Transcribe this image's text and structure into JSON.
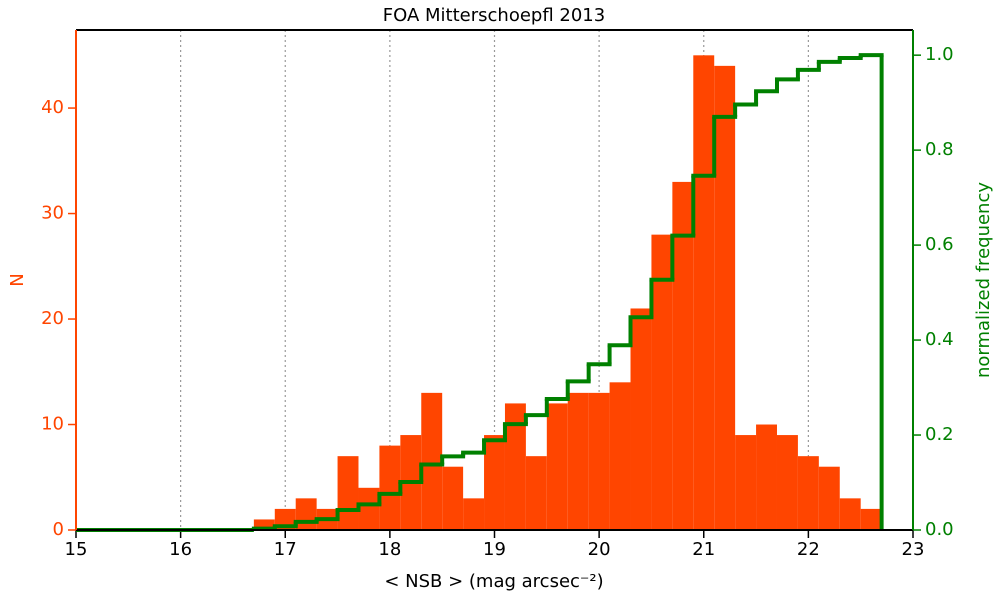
{
  "chart_data": {
    "type": "histogram",
    "title": "FOA Mitterschoepfl 2013",
    "x_label": "< NSB >  (mag arcsec⁻²)",
    "y_label": "N",
    "y2_label": "normalized frequency",
    "bins": [
      16.7,
      16.9,
      17.1,
      17.3,
      17.5,
      17.7,
      17.9,
      18.1,
      18.3,
      18.5,
      18.7,
      18.9,
      19.1,
      19.3,
      19.5,
      19.7,
      19.9,
      20.1,
      20.3,
      20.5,
      20.7,
      20.9,
      21.1,
      21.3,
      21.5,
      21.7,
      21.9,
      22.1,
      22.3,
      22.5,
      22.7
    ],
    "series": [
      {
        "color": "#ff4500",
        "values": [
          1,
          2,
          3,
          2,
          7,
          4,
          8,
          9,
          13,
          6,
          3,
          9,
          12,
          7,
          12,
          13,
          13,
          14,
          21,
          28,
          33,
          45,
          44,
          9,
          10,
          9,
          7,
          6,
          3,
          2
        ]
      },
      {
        "color": "#008000",
        "axis": "y2",
        "values": [
          0.003,
          0.008,
          0.017,
          0.023,
          0.042,
          0.054,
          0.076,
          0.101,
          0.138,
          0.155,
          0.163,
          0.189,
          0.223,
          0.242,
          0.276,
          0.313,
          0.349,
          0.389,
          0.448,
          0.527,
          0.62,
          0.746,
          0.87,
          0.896,
          0.924,
          0.949,
          0.969,
          0.986,
          0.994,
          1
        ]
      }
    ],
    "xlim": [
      15,
      23
    ],
    "xticks": [
      15,
      16,
      17,
      18,
      19,
      20,
      21,
      22,
      23
    ],
    "ylim": [
      0,
      47.4
    ],
    "yticks": [
      0,
      10,
      20,
      30,
      40
    ],
    "y2lim": [
      0,
      1.053
    ],
    "y2ticks": [
      {
        "value": 0,
        "label": "0.0"
      },
      {
        "value": 0.2,
        "label": "0.2"
      },
      {
        "value": 0.4,
        "label": "0.4"
      },
      {
        "value": 0.6,
        "label": "0.6"
      },
      {
        "value": 0.8,
        "label": "0.8"
      },
      {
        "value": 1,
        "label": "1.0"
      }
    ],
    "grid": true
  }
}
